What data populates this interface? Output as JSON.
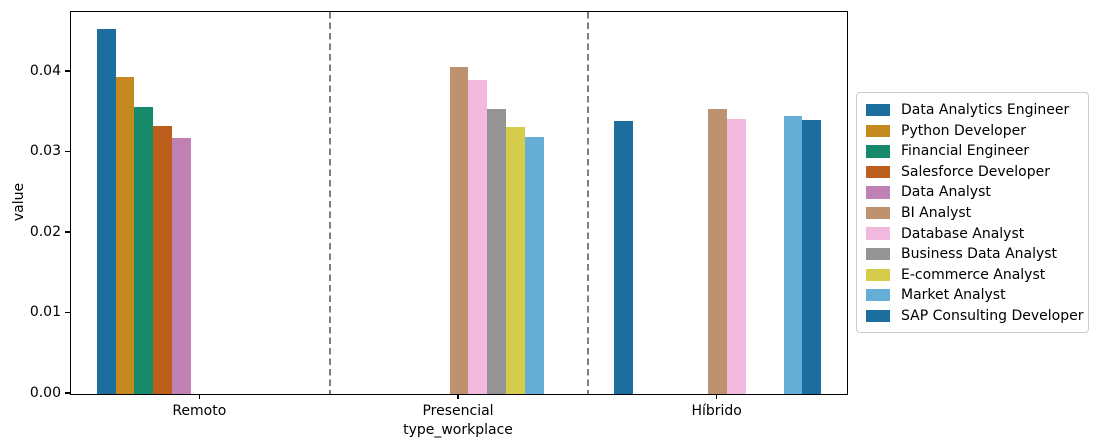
{
  "chart_data": {
    "type": "bar",
    "title": "",
    "xlabel": "type_workplace",
    "ylabel": "value",
    "categories": [
      "Remoto",
      "Presencial",
      "Híbrido"
    ],
    "series": [
      {
        "name": "Data Analytics Engineer",
        "color": "#1b6e9e",
        "values": [
          0.0453,
          null,
          0.0339
        ]
      },
      {
        "name": "Python Developer",
        "color": "#c48a20",
        "values": [
          0.0394,
          null,
          null
        ]
      },
      {
        "name": "Financial Engineer",
        "color": "#168a6a",
        "values": [
          0.0357,
          null,
          null
        ]
      },
      {
        "name": "Salesforce Developer",
        "color": "#bc5f1c",
        "values": [
          0.0333,
          null,
          null
        ]
      },
      {
        "name": "Data Analyst",
        "color": "#c082b4",
        "values": [
          0.0318,
          null,
          null
        ]
      },
      {
        "name": "BI Analyst",
        "color": "#bd9270",
        "values": [
          null,
          0.0406,
          0.0354
        ]
      },
      {
        "name": "Database Analyst",
        "color": "#f2b8dd",
        "values": [
          null,
          0.039,
          0.0341
        ]
      },
      {
        "name": "Business Data Analyst",
        "color": "#949494",
        "values": [
          null,
          0.0354,
          null
        ]
      },
      {
        "name": "E-commerce Analyst",
        "color": "#d4cc4a",
        "values": [
          null,
          0.0332,
          null
        ]
      },
      {
        "name": "Market Analyst",
        "color": "#66aed6",
        "values": [
          null,
          0.0319,
          0.0345
        ]
      },
      {
        "name": "SAP Consulting Developer",
        "color": "#1b6e9e",
        "values": [
          null,
          null,
          0.034
        ]
      }
    ],
    "yticks": {
      "values": [
        0.0,
        0.01,
        0.02,
        0.03,
        0.04
      ],
      "labels": [
        "0.00",
        "0.01",
        "0.02",
        "0.03",
        "0.04"
      ]
    },
    "ylim": [
      0,
      0.04745
    ],
    "group_width_fraction": 0.8,
    "separators": {
      "positions": [
        0.5,
        1.5
      ],
      "color": "#7f7f7f",
      "style": "dashed"
    },
    "legend_position": "outside-right",
    "grid": false
  }
}
